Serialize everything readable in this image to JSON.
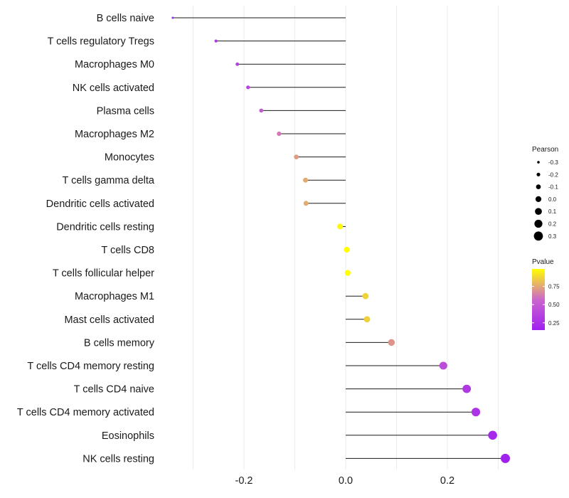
{
  "chart_data": {
    "type": "lollipop",
    "title": "",
    "xlabel": "",
    "ylabel": "",
    "xlim": [
      -0.34,
      0.315
    ],
    "xticks": [
      -0.2,
      0.0,
      0.2
    ],
    "xtick_labels": [
      "-0.2",
      "0.0",
      "0.2"
    ],
    "grid": true,
    "baseline": 0.0,
    "categories": [
      "B cells naive",
      "T cells regulatory  Tregs",
      "Macrophages M0",
      "NK cells activated",
      "Plasma cells",
      "Macrophages M2",
      "Monocytes",
      "T cells gamma delta",
      "Dendritic cells activated",
      "Dendritic cells resting",
      "T cells CD8",
      "T cells follicular helper",
      "Macrophages M1",
      "Mast cells activated",
      "B cells memory",
      "T cells CD4 memory resting",
      "T cells CD4 naive",
      "T cells CD4 memory activated",
      "Eosinophils",
      "NK cells resting"
    ],
    "pearson": [
      -0.34,
      -0.255,
      -0.213,
      -0.192,
      -0.166,
      -0.131,
      -0.097,
      -0.079,
      -0.078,
      -0.011,
      0.002,
      0.004,
      0.039,
      0.042,
      0.09,
      0.192,
      0.238,
      0.256,
      0.289,
      0.314
    ],
    "pvalue": [
      0.15,
      0.3,
      0.35,
      0.38,
      0.48,
      0.62,
      0.72,
      0.76,
      0.76,
      0.97,
      0.99,
      0.99,
      0.87,
      0.86,
      0.7,
      0.42,
      0.3,
      0.27,
      0.2,
      0.16
    ],
    "legends": {
      "size": {
        "title": "Pearson",
        "position": "right",
        "breaks": [
          -0.3,
          -0.2,
          -0.1,
          0.0,
          0.1,
          0.2,
          0.3
        ],
        "labels": [
          "-0.3",
          "-0.2",
          "-0.1",
          "0.0",
          "0.1",
          "0.2",
          "0.3"
        ]
      },
      "color": {
        "title": "Pvalue",
        "position": "right",
        "low_color": "#a020f0",
        "mid_color": "#cc66cc",
        "high_color": "#ffff00",
        "range": [
          0.15,
          0.99
        ],
        "breaks": [
          0.25,
          0.5,
          0.75
        ],
        "labels": [
          "0.25",
          "0.50",
          "0.75"
        ]
      }
    }
  }
}
